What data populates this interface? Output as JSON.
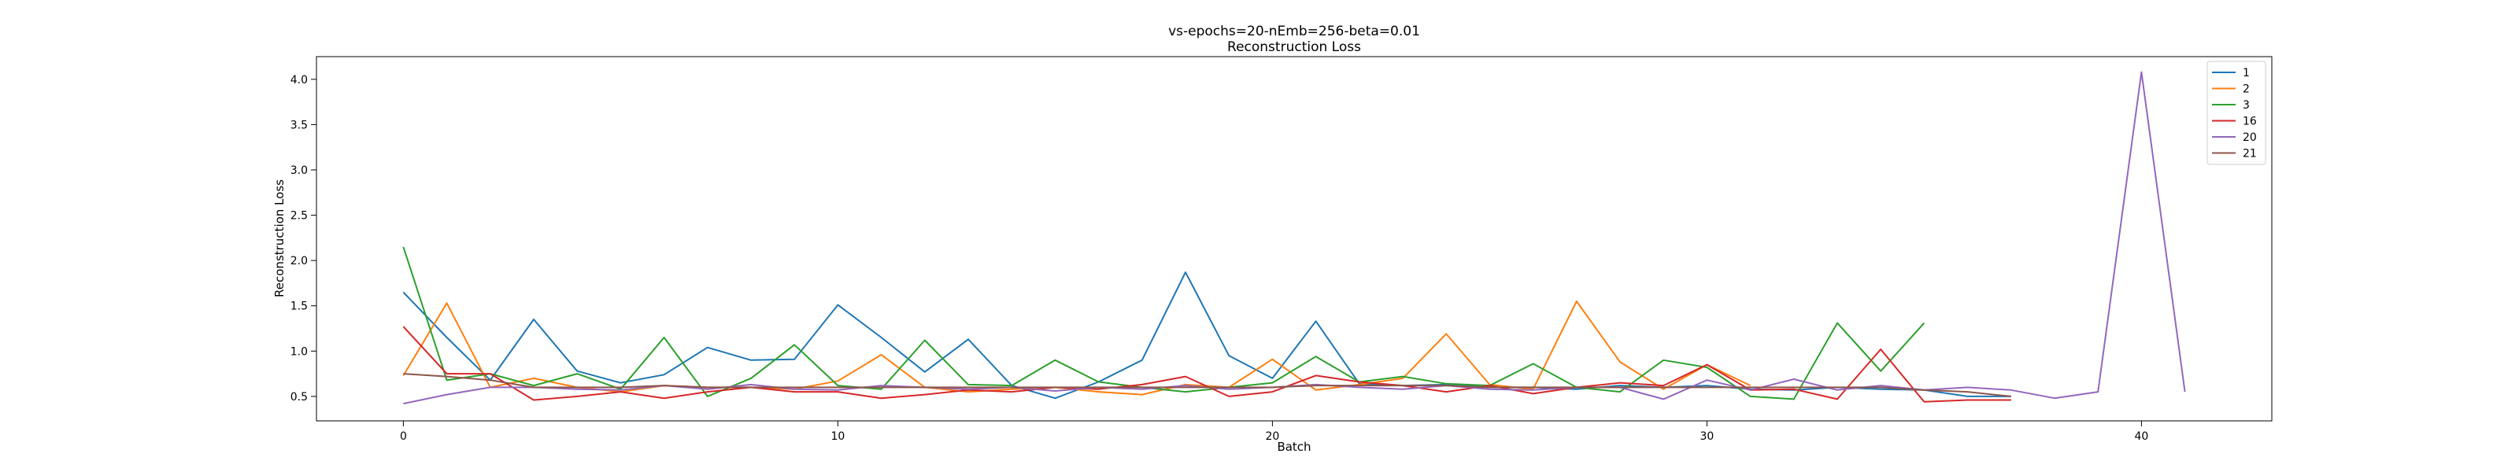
{
  "chart_data": {
    "type": "line",
    "title": "vs-epochs=20-nEmb=256-beta=0.01",
    "subtitle": "Reconstruction Loss",
    "xlabel": "Batch",
    "ylabel": "Reconstruction Loss",
    "xlim": [
      -2,
      43
    ],
    "ylim": [
      0.23,
      4.25
    ],
    "xticks": [
      0,
      10,
      20,
      30,
      40
    ],
    "yticks": [
      0.5,
      1.0,
      1.5,
      2.0,
      2.5,
      3.0,
      3.5,
      4.0
    ],
    "grid": false,
    "legend_position": "top-right",
    "series": [
      {
        "name": "1",
        "color": "#1f77b4",
        "x": [
          0,
          1,
          2,
          3,
          4,
          5,
          6,
          7,
          8,
          9,
          10,
          11,
          12,
          13,
          14,
          15,
          16,
          17,
          18,
          19,
          20,
          21,
          22,
          23,
          24,
          25,
          26,
          27,
          28,
          29,
          30,
          31,
          32,
          33,
          34,
          35,
          36,
          37
        ],
        "values": [
          1.65,
          1.15,
          0.68,
          1.35,
          0.78,
          0.65,
          0.74,
          1.04,
          0.9,
          0.91,
          1.51,
          1.15,
          0.77,
          1.13,
          0.62,
          0.48,
          0.66,
          0.9,
          1.87,
          0.95,
          0.7,
          1.33,
          0.64,
          0.62,
          0.63,
          0.6,
          0.6,
          0.58,
          0.62,
          0.6,
          0.62,
          0.58,
          0.57,
          0.6,
          0.58,
          0.57,
          0.5,
          0.5
        ]
      },
      {
        "name": "2",
        "color": "#ff7f0e",
        "x": [
          0,
          1,
          2,
          3,
          4,
          5,
          6,
          7,
          8,
          9,
          10,
          11,
          12,
          13,
          14,
          15,
          16,
          17,
          18,
          19,
          20,
          21,
          22,
          23,
          24,
          25,
          26,
          27,
          28,
          29,
          30,
          31
        ],
        "values": [
          0.73,
          1.53,
          0.6,
          0.7,
          0.6,
          0.55,
          0.62,
          0.6,
          0.6,
          0.58,
          0.67,
          0.96,
          0.6,
          0.55,
          0.58,
          0.6,
          0.55,
          0.52,
          0.63,
          0.6,
          0.91,
          0.57,
          0.63,
          0.7,
          1.19,
          0.63,
          0.58,
          1.55,
          0.88,
          0.58,
          0.85,
          0.62
        ]
      },
      {
        "name": "3",
        "color": "#2ca02c",
        "x": [
          0,
          1,
          2,
          3,
          4,
          5,
          6,
          7,
          8,
          9,
          10,
          11,
          12,
          13,
          14,
          15,
          16,
          17,
          18,
          19,
          20,
          21,
          22,
          23,
          24,
          25,
          26,
          27,
          28,
          29,
          30,
          31,
          32,
          33,
          34,
          35
        ],
        "values": [
          2.15,
          0.68,
          0.75,
          0.62,
          0.75,
          0.58,
          1.15,
          0.5,
          0.7,
          1.07,
          0.62,
          0.58,
          1.12,
          0.63,
          0.62,
          0.9,
          0.66,
          0.6,
          0.55,
          0.6,
          0.65,
          0.94,
          0.66,
          0.72,
          0.64,
          0.62,
          0.86,
          0.6,
          0.55,
          0.9,
          0.82,
          0.5,
          0.47,
          1.31,
          0.78,
          1.31
        ]
      },
      {
        "name": "16",
        "color": "#d62728",
        "x": [
          0,
          1,
          2,
          3,
          4,
          5,
          6,
          7,
          8,
          9,
          10,
          11,
          12,
          13,
          14,
          15,
          16,
          17,
          18,
          19,
          20,
          21,
          22,
          23,
          24,
          25,
          26,
          27,
          28,
          29,
          30,
          31,
          32,
          33,
          34,
          35,
          36,
          37
        ],
        "values": [
          1.27,
          0.75,
          0.75,
          0.46,
          0.5,
          0.55,
          0.48,
          0.55,
          0.6,
          0.55,
          0.55,
          0.48,
          0.52,
          0.57,
          0.55,
          0.6,
          0.58,
          0.63,
          0.72,
          0.5,
          0.55,
          0.73,
          0.66,
          0.62,
          0.55,
          0.62,
          0.53,
          0.6,
          0.65,
          0.62,
          0.85,
          0.57,
          0.58,
          0.47,
          1.02,
          0.44,
          0.46,
          0.46
        ]
      },
      {
        "name": "20",
        "color": "#9467bd",
        "x": [
          0,
          1,
          2,
          3,
          4,
          5,
          6,
          7,
          8,
          9,
          10,
          11,
          12,
          13,
          14,
          15,
          16,
          17,
          18,
          19,
          20,
          21,
          22,
          23,
          24,
          25,
          26,
          27,
          28,
          29,
          30,
          31,
          32,
          33,
          34,
          35,
          36,
          37,
          38,
          39,
          40,
          41
        ],
        "values": [
          0.42,
          0.52,
          0.6,
          0.6,
          0.58,
          0.57,
          0.62,
          0.58,
          0.63,
          0.58,
          0.57,
          0.62,
          0.6,
          0.58,
          0.6,
          0.56,
          0.6,
          0.58,
          0.62,
          0.58,
          0.6,
          0.63,
          0.6,
          0.58,
          0.62,
          0.58,
          0.57,
          0.6,
          0.6,
          0.47,
          0.68,
          0.57,
          0.69,
          0.57,
          0.62,
          0.57,
          0.6,
          0.57,
          0.48,
          0.55,
          4.08,
          0.55
        ]
      },
      {
        "name": "21",
        "color": "#8c564b",
        "x": [
          0,
          1,
          2,
          3,
          4,
          5,
          6,
          7,
          8,
          9,
          10,
          11,
          12,
          13,
          14,
          15,
          16,
          17,
          18,
          19,
          20,
          21,
          22,
          23,
          24,
          25,
          26,
          27,
          28,
          29,
          30,
          31,
          32,
          33,
          34,
          35,
          36,
          37
        ],
        "values": [
          0.75,
          0.72,
          0.68,
          0.6,
          0.6,
          0.6,
          0.62,
          0.6,
          0.6,
          0.6,
          0.6,
          0.6,
          0.6,
          0.6,
          0.6,
          0.6,
          0.6,
          0.6,
          0.6,
          0.6,
          0.6,
          0.62,
          0.62,
          0.62,
          0.62,
          0.6,
          0.6,
          0.6,
          0.6,
          0.6,
          0.6,
          0.6,
          0.6,
          0.6,
          0.6,
          0.57,
          0.55,
          0.5
        ]
      }
    ]
  }
}
